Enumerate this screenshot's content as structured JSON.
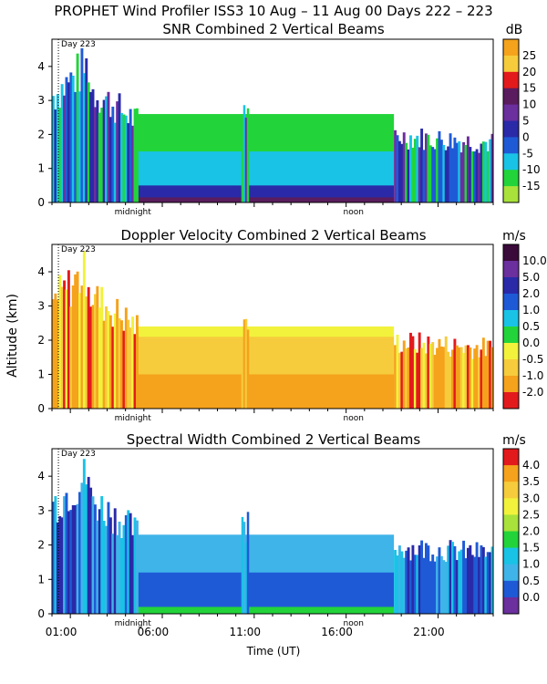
{
  "title": "PROPHET Wind Profiler ISS3  10 Aug – 11 Aug 00 Days 222 – 223",
  "colors": {
    "purple_dark": "#5a1c5e",
    "purple": "#6b2f9e",
    "indigo": "#2a2aa8",
    "blue": "#1f5ad6",
    "light_blue": "#3fb4e8",
    "cyan": "#19c3e6",
    "green": "#22d43a",
    "yellow_green": "#a8e23a",
    "yellow": "#f2f23c",
    "light_orange": "#f6cc3c",
    "orange": "#f5a21c",
    "red": "#e31a1c",
    "black_purple": "#3a0a3a"
  },
  "chart_data": [
    {
      "type": "heatmap",
      "title": "SNR Combined 2 Vertical Beams",
      "unit": "dB",
      "ylabel": "",
      "xlabel": "",
      "ylim": [
        0,
        4.8
      ],
      "yticks": [
        "0",
        "1",
        "2",
        "3",
        "4"
      ],
      "xlim_hours": [
        0,
        24
      ],
      "day_marker": "Day 223",
      "annotations": [
        "midnight",
        "noon"
      ],
      "colorbar": {
        "labels": [
          "25",
          "20",
          "15",
          "10",
          "5",
          "0",
          "-5",
          "-10",
          "-15"
        ],
        "colors": [
          "#f5a21c",
          "#f6cc3c",
          "#e31a1c",
          "#5a1c5e",
          "#6b2f9e",
          "#2a2aa8",
          "#1f5ad6",
          "#19c3e6",
          "#22d43a",
          "#a8e23a"
        ]
      },
      "layers": [
        {
          "name": "surface",
          "top_km": 0.15,
          "color": "#5a1c5e"
        },
        {
          "name": "lower boundary layer",
          "top_km": 0.5,
          "color": "#2a2aa8"
        },
        {
          "name": "middle boundary layer",
          "top_km": 1.5,
          "color": "#19c3e6"
        },
        {
          "name": "upper boundary layer",
          "top_km": 2.6,
          "color": "#22d43a"
        }
      ]
    },
    {
      "type": "heatmap",
      "title": "Doppler Velocity Combined 2 Vertical Beams",
      "unit": "m/s",
      "ylabel": "Altitude (km)",
      "xlabel": "",
      "ylim": [
        0,
        4.8
      ],
      "yticks": [
        "0",
        "1",
        "2",
        "3",
        "4"
      ],
      "xlim_hours": [
        0,
        24
      ],
      "day_marker": "Day 223",
      "annotations": [
        "midnight",
        "noon"
      ],
      "colorbar": {
        "labels": [
          "10.0",
          "5.0",
          "2.0",
          "1.0",
          "0.5",
          "0.0",
          "-0.5",
          "-1.0",
          "-2.0"
        ],
        "colors": [
          "#3a0a3a",
          "#6b2f9e",
          "#2a2aa8",
          "#1f5ad6",
          "#19c3e6",
          "#22d43a",
          "#f2f23c",
          "#f6cc3c",
          "#f5a21c",
          "#e31a1c"
        ]
      },
      "layers": [
        {
          "name": "lower",
          "top_km": 1.0,
          "color": "#f5a21c"
        },
        {
          "name": "middle",
          "top_km": 2.1,
          "color": "#f6cc3c"
        },
        {
          "name": "upper",
          "top_km": 2.4,
          "color": "#f2f23c"
        }
      ]
    },
    {
      "type": "heatmap",
      "title": "Spectral Width Combined 2 Vertical Beams",
      "unit": "m/s",
      "ylabel": "",
      "xlabel": "Time (UT)",
      "ylim": [
        0,
        4.8
      ],
      "yticks": [
        "0",
        "1",
        "2",
        "3",
        "4"
      ],
      "xlim_hours": [
        0,
        24
      ],
      "xtick_labels": [
        "01:00",
        "06:00",
        "11:00",
        "16:00",
        "21:00"
      ],
      "day_marker": "Day 223",
      "annotations": [
        "midnight",
        "noon"
      ],
      "colorbar": {
        "labels": [
          "4.0",
          "3.5",
          "3.0",
          "2.5",
          "2.0",
          "1.5",
          "1.0",
          "0.5",
          "0.0"
        ],
        "colors": [
          "#e31a1c",
          "#f5a21c",
          "#f6cc3c",
          "#f2f23c",
          "#a8e23a",
          "#22d43a",
          "#19c3e6",
          "#3fb4e8",
          "#1f5ad6",
          "#6b2f9e"
        ]
      },
      "layers": [
        {
          "name": "lower",
          "top_km": 0.2,
          "color": "#22d43a"
        },
        {
          "name": "middle",
          "top_km": 1.2,
          "color": "#1f5ad6"
        },
        {
          "name": "upper",
          "top_km": 2.3,
          "color": "#3fb4e8"
        }
      ]
    }
  ]
}
